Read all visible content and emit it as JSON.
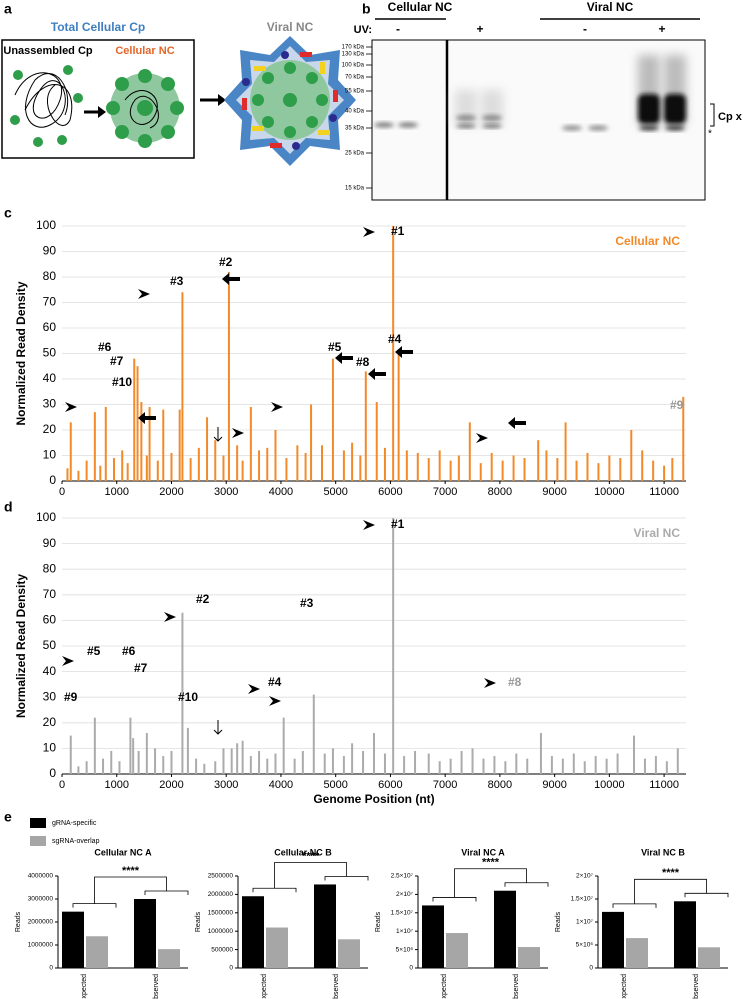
{
  "panel_a": {
    "label": "a",
    "title": "Total Cellular Cp",
    "unassembled": "Unassembled Cp",
    "cellular": "Cellular NC",
    "viral": "Viral NC"
  },
  "panel_b": {
    "label": "b",
    "groups": [
      "Cellular NC",
      "Viral NC"
    ],
    "uv_label": "UV:",
    "uv": [
      "-",
      "+",
      "-",
      "+"
    ],
    "markers": [
      "170 kDa",
      "130 kDa",
      "100 kDa",
      "70 kDa",
      "55 kDa",
      "40 kDa",
      "35 kDa",
      "25 kDa",
      "15 kDa"
    ],
    "band_label": "Cp x RNA",
    "star": "*"
  },
  "panel_labels": {
    "c": "c",
    "d": "d",
    "e": "e"
  },
  "chart_data": [
    {
      "type": "bar",
      "title": "Cellular NC",
      "color": "#f28a2a",
      "y_label": "Normalized Read Density",
      "grid": true,
      "x": [
        100,
        160,
        300,
        450,
        600,
        700,
        800,
        950,
        1100,
        1200,
        1320,
        1380,
        1450,
        1550,
        1600,
        1750,
        1850,
        2000,
        2150,
        2200,
        2350,
        2500,
        2650,
        2800,
        2950,
        3050,
        3200,
        3300,
        3450,
        3600,
        3750,
        3900,
        4100,
        4300,
        4450,
        4550,
        4750,
        4950,
        5150,
        5300,
        5450,
        5550,
        5750,
        5900,
        6050,
        6150,
        6300,
        6500,
        6700,
        6900,
        7100,
        7250,
        7450,
        7650,
        7850,
        8050,
        8250,
        8450,
        8700,
        8850,
        9050,
        9200,
        9400,
        9600,
        9800,
        10000,
        10200,
        10400,
        10600,
        10800,
        11000,
        11150,
        11350
      ],
      "values": [
        5,
        23,
        4,
        8,
        27,
        6,
        29,
        9,
        12,
        7,
        48,
        45,
        31,
        10,
        29,
        8,
        28,
        11,
        28,
        74,
        9,
        13,
        25,
        16,
        10,
        82,
        14,
        8,
        29,
        12,
        13,
        20,
        9,
        14,
        11,
        30,
        14,
        48,
        12,
        15,
        10,
        43,
        31,
        13,
        100,
        51,
        12,
        11,
        9,
        12,
        8,
        10,
        23,
        7,
        11,
        8,
        10,
        9,
        16,
        12,
        9,
        23,
        8,
        11,
        7,
        10,
        9,
        20,
        12,
        8,
        6,
        9,
        33
      ],
      "xlim": [
        0,
        11400
      ],
      "xticks": [
        0,
        1000,
        2000,
        3000,
        4000,
        5000,
        6000,
        7000,
        8000,
        9000,
        10000,
        11000
      ],
      "ylim": [
        0,
        100
      ],
      "yticks": [
        0,
        10,
        20,
        30,
        40,
        50,
        60,
        70,
        80,
        90,
        100
      ],
      "annotations": [
        "#1",
        "#2",
        "#3",
        "#4",
        "#5",
        "#6",
        "#7",
        "#8",
        "#9",
        "#10"
      ]
    },
    {
      "type": "bar",
      "title": "Viral NC",
      "color": "#ababab",
      "y_label": "Normalized Read Density",
      "x_label": "Genome Position (nt)",
      "grid": true,
      "x": [
        160,
        300,
        450,
        600,
        750,
        900,
        1050,
        1250,
        1300,
        1400,
        1550,
        1700,
        1850,
        2000,
        2200,
        2300,
        2450,
        2600,
        2800,
        2950,
        3100,
        3200,
        3300,
        3450,
        3600,
        3750,
        3900,
        4050,
        4250,
        4400,
        4600,
        4800,
        4950,
        5150,
        5300,
        5500,
        5700,
        5900,
        6050,
        6250,
        6450,
        6700,
        6900,
        7100,
        7300,
        7500,
        7700,
        7900,
        8100,
        8300,
        8500,
        8750,
        8950,
        9150,
        9350,
        9550,
        9750,
        9950,
        10150,
        10450,
        10650,
        10850,
        11050,
        11250
      ],
      "values": [
        15,
        3,
        5,
        22,
        6,
        9,
        5,
        22,
        14,
        9,
        16,
        10,
        7,
        9,
        63,
        18,
        6,
        4,
        5,
        10,
        10,
        12,
        13,
        7,
        9,
        6,
        8,
        22,
        6,
        9,
        31,
        8,
        10,
        7,
        12,
        9,
        16,
        8,
        100,
        7,
        9,
        8,
        5,
        6,
        9,
        10,
        6,
        7,
        5,
        8,
        6,
        16,
        7,
        6,
        8,
        5,
        7,
        6,
        8,
        15,
        6,
        7,
        5,
        10
      ],
      "xlim": [
        0,
        11400
      ],
      "xticks": [
        0,
        1000,
        2000,
        3000,
        4000,
        5000,
        6000,
        7000,
        8000,
        9000,
        10000,
        11000
      ],
      "ylim": [
        0,
        100
      ],
      "yticks": [
        0,
        10,
        20,
        30,
        40,
        50,
        60,
        70,
        80,
        90,
        100
      ],
      "annotations": [
        "#1",
        "#2",
        "#3",
        "#4",
        "#5",
        "#6",
        "#7",
        "#8",
        "#9",
        "#10"
      ]
    },
    {
      "type": "grouped_bar",
      "title": "Cellular NC A",
      "y_label": "Reads",
      "significance": "****",
      "categories": [
        "Expected",
        "Observed"
      ],
      "series": [
        {
          "name": "gRNA-specific",
          "color": "#000000",
          "values": [
            2450000,
            3000000
          ]
        },
        {
          "name": "sgRNA-overlap",
          "color": "#a6a6a6",
          "values": [
            1380000,
            820000
          ]
        }
      ],
      "ylim": [
        0,
        4000000
      ],
      "yticks": [
        0,
        1000000,
        2000000,
        3000000,
        4000000
      ]
    },
    {
      "type": "grouped_bar",
      "title": "Cellular NC B",
      "y_label": "Reads",
      "significance": "****",
      "categories": [
        "Expected",
        "Observed"
      ],
      "series": [
        {
          "values": [
            1950000,
            2270000
          ]
        },
        {
          "values": [
            1100000,
            780000
          ]
        }
      ],
      "ylim": [
        0,
        2500000
      ],
      "yticks": [
        0,
        500000,
        1000000,
        1500000,
        2000000,
        2500000
      ]
    },
    {
      "type": "grouped_bar",
      "title": "Viral NC A",
      "y_label": "Reads",
      "significance": "****",
      "categories": [
        "Expected",
        "Observed"
      ],
      "series": [
        {
          "values": [
            17000000,
            21000000
          ]
        },
        {
          "values": [
            9500000,
            5700000
          ]
        }
      ],
      "ylim": [
        0,
        25000000
      ],
      "yticks": [
        0,
        {
          "value": 5000000,
          "label": "5×10⁶"
        },
        {
          "value": 10000000,
          "label": "1×10⁷"
        },
        {
          "value": 15000000,
          "label": "1.5×10⁷"
        },
        {
          "value": 20000000,
          "label": "2×10⁷"
        },
        {
          "value": 25000000,
          "label": "2.5×10⁷"
        }
      ]
    },
    {
      "type": "grouped_bar",
      "title": "Viral NC B",
      "y_label": "Reads",
      "significance": "****",
      "categories": [
        "Expected",
        "Observed"
      ],
      "series": [
        {
          "values": [
            12200000,
            14500000
          ]
        },
        {
          "values": [
            6500000,
            4500000
          ]
        }
      ],
      "ylim": [
        0,
        20000000
      ],
      "yticks": [
        0,
        {
          "value": 5000000,
          "label": "5×10⁶"
        },
        {
          "value": 10000000,
          "label": "1×10⁷"
        },
        {
          "value": 15000000,
          "label": "1.5×10⁷"
        },
        {
          "value": 20000000,
          "label": "2×10⁷"
        }
      ]
    }
  ]
}
